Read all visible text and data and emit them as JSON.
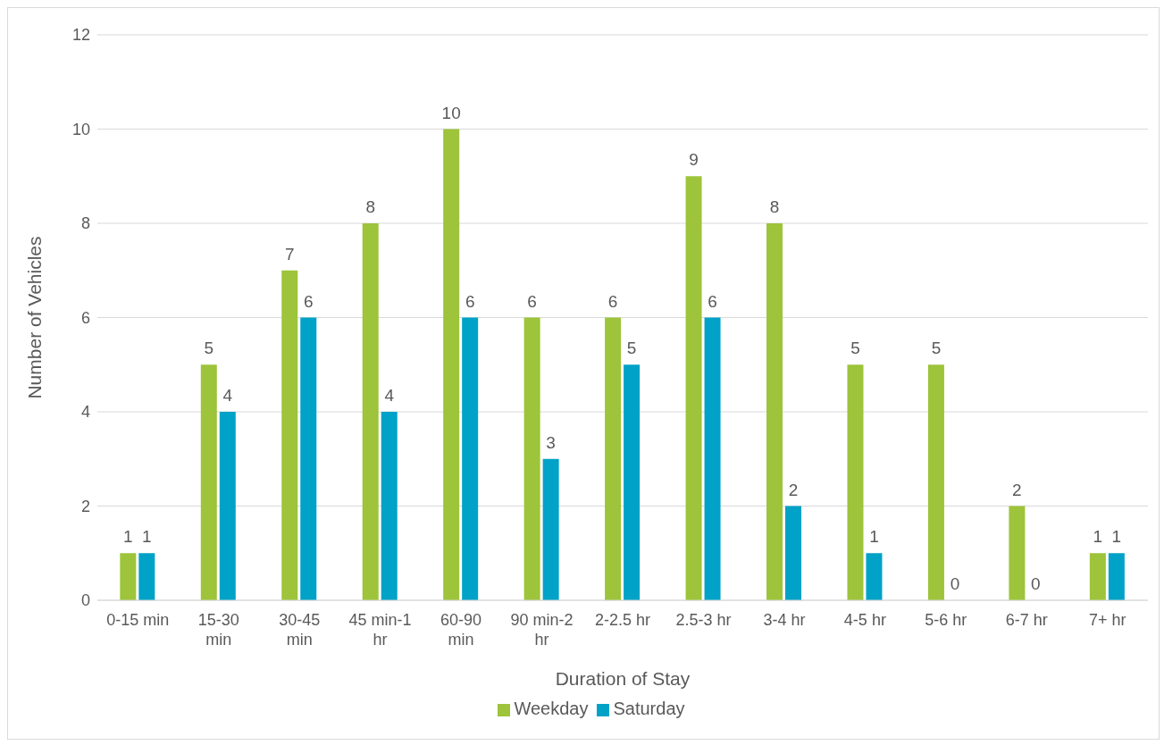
{
  "chart_data": {
    "type": "bar",
    "xlabel": "Duration of Stay",
    "ylabel": "Number of Vehicles",
    "categories": [
      "0-15 min",
      "15-30 min",
      "30-45 min",
      "45 min-1 hr",
      "60-90 min",
      "90 min-2 hr",
      "2-2.5 hr",
      "2.5-3 hr",
      "3-4 hr",
      "4-5 hr",
      "5-6 hr",
      "6-7 hr",
      "7+ hr"
    ],
    "series": [
      {
        "name": "Weekday",
        "color": "#9dc43a",
        "values": [
          1,
          5,
          7,
          8,
          10,
          6,
          6,
          9,
          8,
          5,
          5,
          2,
          1
        ]
      },
      {
        "name": "Saturday",
        "color": "#00a2c7",
        "values": [
          1,
          4,
          6,
          4,
          6,
          3,
          5,
          6,
          2,
          1,
          0,
          0,
          1
        ]
      }
    ],
    "ylim": [
      0,
      12
    ],
    "yticks": [
      0,
      2,
      4,
      6,
      8,
      10,
      12
    ],
    "grid": "y",
    "legend": "bottom",
    "data_labels": true
  }
}
